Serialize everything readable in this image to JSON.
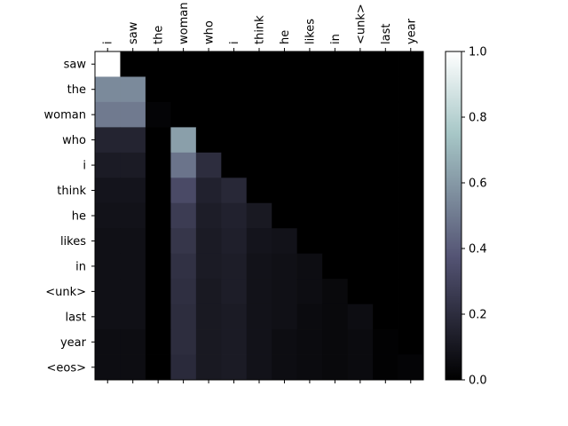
{
  "chart_data": {
    "type": "heatmap",
    "title": "",
    "xlabel": "",
    "ylabel": "",
    "x_tokens": [
      "i",
      "saw",
      "the",
      "woman",
      "who",
      "i",
      "think",
      "he",
      "likes",
      "in",
      "<unk>",
      "last",
      "year"
    ],
    "y_tokens": [
      "saw",
      "the",
      "woman",
      "who",
      "i",
      "think",
      "he",
      "likes",
      "in",
      "<unk>",
      "last",
      "year",
      "<eos>"
    ],
    "values": [
      [
        1.0,
        0.0,
        0.0,
        0.0,
        0.0,
        0.0,
        0.0,
        0.0,
        0.0,
        0.0,
        0.0,
        0.0,
        0.0
      ],
      [
        0.55,
        0.55,
        0.0,
        0.0,
        0.0,
        0.0,
        0.0,
        0.0,
        0.0,
        0.0,
        0.0,
        0.0,
        0.0
      ],
      [
        0.5,
        0.5,
        0.02,
        0.0,
        0.0,
        0.0,
        0.0,
        0.0,
        0.0,
        0.0,
        0.0,
        0.0,
        0.0
      ],
      [
        0.16,
        0.16,
        0.0,
        0.62,
        0.0,
        0.0,
        0.0,
        0.0,
        0.0,
        0.0,
        0.0,
        0.0,
        0.0
      ],
      [
        0.12,
        0.12,
        0.0,
        0.48,
        0.2,
        0.0,
        0.0,
        0.0,
        0.0,
        0.0,
        0.0,
        0.0,
        0.0
      ],
      [
        0.09,
        0.09,
        0.0,
        0.33,
        0.15,
        0.18,
        0.0,
        0.0,
        0.0,
        0.0,
        0.0,
        0.0,
        0.0
      ],
      [
        0.08,
        0.08,
        0.0,
        0.27,
        0.13,
        0.15,
        0.11,
        0.0,
        0.0,
        0.0,
        0.0,
        0.0,
        0.0
      ],
      [
        0.07,
        0.07,
        0.0,
        0.24,
        0.12,
        0.14,
        0.09,
        0.08,
        0.0,
        0.0,
        0.0,
        0.0,
        0.0
      ],
      [
        0.07,
        0.07,
        0.0,
        0.22,
        0.12,
        0.13,
        0.08,
        0.07,
        0.06,
        0.0,
        0.0,
        0.0,
        0.0
      ],
      [
        0.07,
        0.07,
        0.0,
        0.21,
        0.11,
        0.13,
        0.08,
        0.07,
        0.06,
        0.04,
        0.0,
        0.0,
        0.0
      ],
      [
        0.07,
        0.07,
        0.0,
        0.2,
        0.11,
        0.12,
        0.08,
        0.07,
        0.05,
        0.04,
        0.06,
        0.0,
        0.0
      ],
      [
        0.06,
        0.06,
        0.0,
        0.2,
        0.11,
        0.12,
        0.08,
        0.06,
        0.05,
        0.04,
        0.05,
        0.01,
        0.0
      ],
      [
        0.06,
        0.06,
        0.0,
        0.19,
        0.11,
        0.12,
        0.08,
        0.06,
        0.05,
        0.04,
        0.05,
        0.01,
        0.02
      ]
    ],
    "colormap": "bone",
    "colorbar": {
      "range": [
        0.0,
        1.0
      ],
      "ticks": [
        "0.0",
        "0.2",
        "0.4",
        "0.6",
        "0.8",
        "1.0"
      ]
    },
    "grid": false,
    "legend": "colorbar-right"
  }
}
